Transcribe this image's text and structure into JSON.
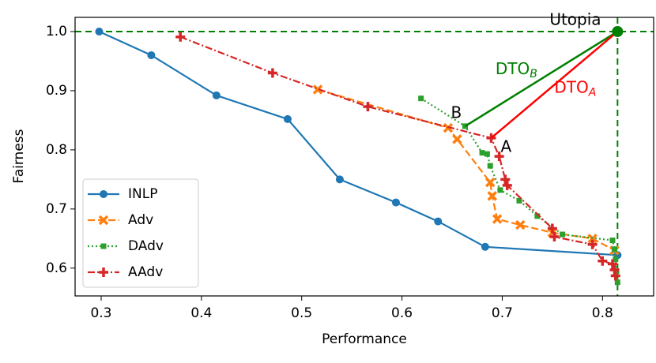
{
  "chart_data": {
    "type": "line",
    "x_label": "Performance",
    "y_label": "Fairness",
    "xlim": [
      0.274,
      0.851
    ],
    "ylim": [
      0.553,
      1.024
    ],
    "xticks": [
      0.3,
      0.4,
      0.5,
      0.6,
      0.7,
      0.8
    ],
    "yticks": [
      0.6,
      0.7,
      0.8,
      0.9,
      {
        "value": 1,
        "label": "1.0"
      }
    ],
    "legend": "lower left",
    "series": [
      {
        "name": "INLP",
        "color": "#1f77b4",
        "line": "solid",
        "marker": "circle",
        "x": [
          0.298,
          0.35,
          0.415,
          0.486,
          0.538,
          0.594,
          0.636,
          0.683,
          0.815
        ],
        "values": [
          1.0,
          0.96,
          0.892,
          0.852,
          0.75,
          0.711,
          0.679,
          0.636,
          0.622
        ]
      },
      {
        "name": "Adv",
        "color": "#ff7f0e",
        "line": "dashed",
        "marker": "x",
        "x": [
          0.516,
          0.646,
          0.655,
          0.688,
          0.69,
          0.695,
          0.718,
          0.75,
          0.79,
          0.812
        ],
        "values": [
          0.902,
          0.837,
          0.818,
          0.745,
          0.722,
          0.683,
          0.673,
          0.66,
          0.65,
          0.63
        ]
      },
      {
        "name": "DAdv",
        "color": "#2ca02c",
        "line": "dotted",
        "marker": "square",
        "x": [
          0.619,
          0.663,
          0.68,
          0.685,
          0.688,
          0.698,
          0.717,
          0.735,
          0.76,
          0.81,
          0.812,
          0.813,
          0.814,
          0.815
        ],
        "values": [
          0.887,
          0.84,
          0.795,
          0.793,
          0.773,
          0.732,
          0.714,
          0.688,
          0.657,
          0.647,
          0.632,
          0.615,
          0.595,
          0.576
        ]
      },
      {
        "name": "AAdv",
        "color": "#d62728",
        "line": "dashdot",
        "marker": "plus",
        "x": [
          0.379,
          0.471,
          0.566,
          0.689,
          0.697,
          0.703,
          0.705,
          0.75,
          0.752,
          0.79,
          0.8,
          0.81,
          0.812,
          0.813
        ],
        "values": [
          0.991,
          0.93,
          0.873,
          0.82,
          0.789,
          0.75,
          0.74,
          0.667,
          0.653,
          0.64,
          0.612,
          0.607,
          0.597,
          0.587
        ]
      }
    ],
    "utopia": {
      "label": "Utopia",
      "x": 0.815,
      "y": 1.0,
      "color": "#008000"
    },
    "points": [
      {
        "label": "B",
        "x": 0.663,
        "y": 0.84,
        "color": "#008000",
        "dto": "DTO",
        "sub": "B"
      },
      {
        "label": "A",
        "x": 0.689,
        "y": 0.82,
        "color": "#ff0000",
        "dto": "DTO",
        "sub": "A"
      }
    ]
  }
}
